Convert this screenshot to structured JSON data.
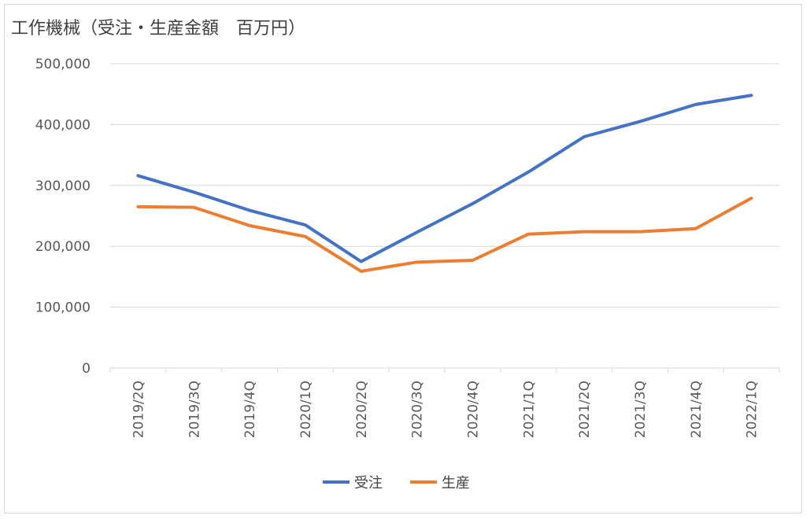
{
  "chart_data": {
    "type": "line",
    "title": "工作機械（受注・生産金額　百万円）",
    "categories": [
      "2019/2Q",
      "2019/3Q",
      "2019/4Q",
      "2020/1Q",
      "2020/2Q",
      "2020/3Q",
      "2020/4Q",
      "2021/1Q",
      "2021/2Q",
      "2021/3Q",
      "2021/4Q",
      "2022/1Q"
    ],
    "series": [
      {
        "name": "受注",
        "color": "#4472C4",
        "values": [
          316000,
          289000,
          259000,
          235000,
          175000,
          223000,
          270000,
          322000,
          380000,
          405000,
          433000,
          448000
        ]
      },
      {
        "name": "生産",
        "color": "#ED7D31",
        "values": [
          265000,
          264000,
          234000,
          216000,
          159000,
          174000,
          177000,
          220000,
          224000,
          224000,
          229000,
          279000
        ]
      }
    ],
    "yticks": [
      "0",
      "100,000",
      "200,000",
      "300,000",
      "400,000",
      "500,000"
    ],
    "ylim": [
      0,
      500000
    ],
    "grid": true,
    "legend": "bottom"
  }
}
